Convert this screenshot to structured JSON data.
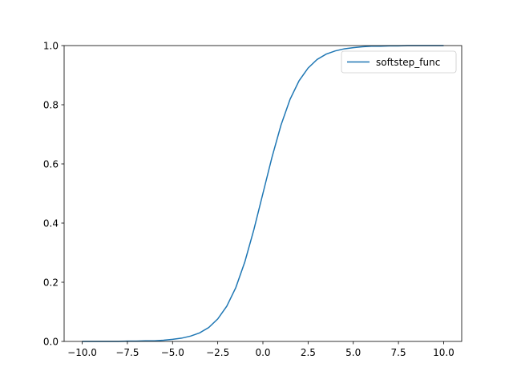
{
  "chart_data": {
    "type": "line",
    "x": [
      -10,
      -9.5,
      -9,
      -8.5,
      -8,
      -7.5,
      -7,
      -6.5,
      -6,
      -5.5,
      -5,
      -4.5,
      -4,
      -3.5,
      -3,
      -2.5,
      -2,
      -1.5,
      -1,
      -0.5,
      0,
      0.5,
      1,
      1.5,
      2,
      2.5,
      3,
      3.5,
      4,
      4.5,
      5,
      5.5,
      6,
      6.5,
      7,
      7.5,
      8,
      8.5,
      9,
      9.5,
      10
    ],
    "series": [
      {
        "name": "softstep_func",
        "color": "#1f77b4",
        "values": [
          0.0,
          0.0,
          0.0,
          0.0,
          0.0,
          0.001,
          0.001,
          0.002,
          0.002,
          0.004,
          0.007,
          0.011,
          0.018,
          0.029,
          0.047,
          0.076,
          0.119,
          0.182,
          0.269,
          0.378,
          0.5,
          0.622,
          0.731,
          0.818,
          0.881,
          0.924,
          0.953,
          0.971,
          0.982,
          0.989,
          0.993,
          0.996,
          0.998,
          0.998,
          0.999,
          0.999,
          1.0,
          1.0,
          1.0,
          1.0,
          1.0
        ]
      }
    ],
    "xlim": [
      -11,
      11
    ],
    "ylim": [
      0,
      1
    ],
    "xticks": [
      {
        "value": -10,
        "label": "−10.0"
      },
      {
        "value": -7.5,
        "label": "−7.5"
      },
      {
        "value": -5,
        "label": "−5.0"
      },
      {
        "value": -2.5,
        "label": "−2.5"
      },
      {
        "value": 0,
        "label": "0.0"
      },
      {
        "value": 2.5,
        "label": "2.5"
      },
      {
        "value": 5,
        "label": "5.0"
      },
      {
        "value": 7.5,
        "label": "7.5"
      },
      {
        "value": 10,
        "label": "10.0"
      }
    ],
    "yticks": [
      {
        "value": 0,
        "label": "0.0"
      },
      {
        "value": 0.2,
        "label": "0.2"
      },
      {
        "value": 0.4,
        "label": "0.4"
      },
      {
        "value": 0.6,
        "label": "0.6"
      },
      {
        "value": 0.8,
        "label": "0.8"
      },
      {
        "value": 1,
        "label": "1.0"
      }
    ],
    "legend": "upper right"
  }
}
